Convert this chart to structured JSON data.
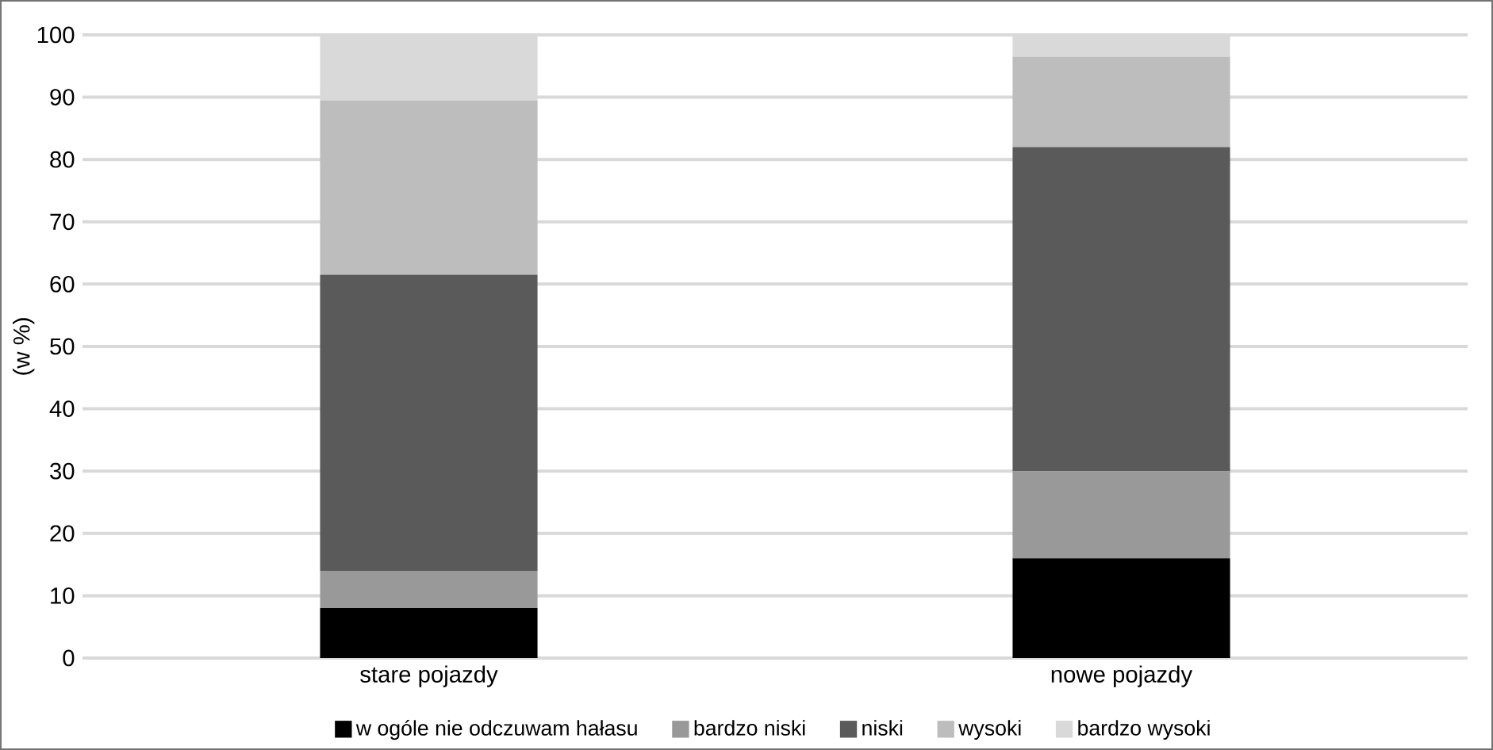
{
  "chart_data": {
    "type": "bar",
    "stacked": true,
    "ylabel": "(w %)",
    "categories": [
      "stare pojazdy",
      "nowe pojazdy"
    ],
    "series": [
      {
        "name": "w ogóle nie odczuwam hałasu",
        "color": "#000000",
        "values": [
          8,
          16
        ]
      },
      {
        "name": "bardzo niski",
        "color": "#999999",
        "values": [
          6,
          14
        ]
      },
      {
        "name": "niski",
        "color": "#5a5a5a",
        "values": [
          47.5,
          52
        ]
      },
      {
        "name": "wysoki",
        "color": "#bdbdbd",
        "values": [
          28,
          14.5
        ]
      },
      {
        "name": "bardzo wysoki",
        "color": "#d9d9d9",
        "values": [
          10.5,
          3.5
        ]
      }
    ],
    "ylim": [
      0,
      100
    ],
    "yticks": [
      0,
      10,
      20,
      30,
      40,
      50,
      60,
      70,
      80,
      90,
      100
    ],
    "grid": "y",
    "legend": "bottom"
  }
}
